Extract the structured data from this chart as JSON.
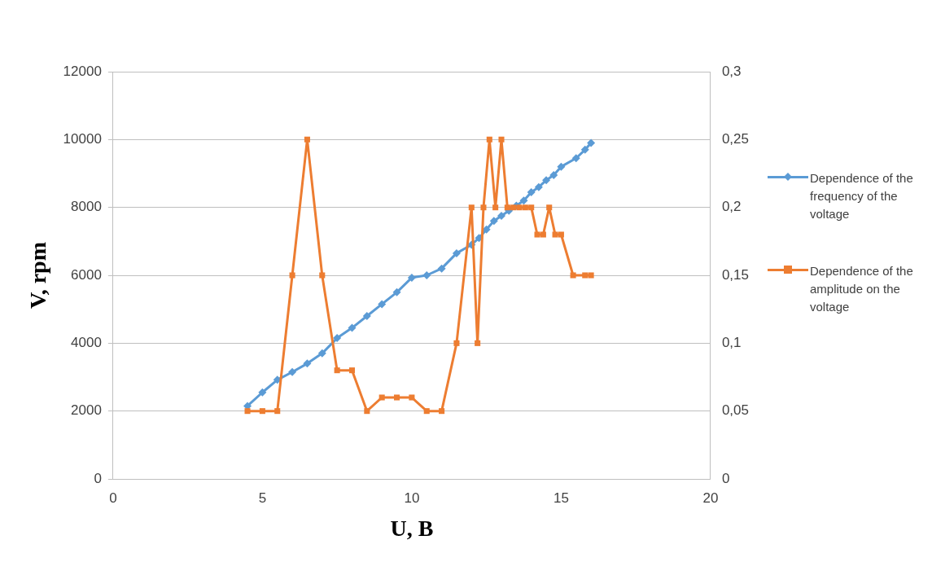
{
  "chart_data": {
    "type": "line",
    "xlabel": "U, B",
    "ylabel": "V, rpm",
    "xlim": [
      0,
      20
    ],
    "xticks": [
      0,
      5,
      10,
      15,
      20
    ],
    "ylim": [
      0,
      12000
    ],
    "yticks": [
      0,
      2000,
      4000,
      6000,
      8000,
      10000,
      12000
    ],
    "y2lim": [
      0,
      0.3
    ],
    "y2ticks": [
      0,
      {
        "value": 0.05,
        "label": "0,05"
      },
      {
        "value": 0.1,
        "label": "0,1"
      },
      {
        "value": 0.15,
        "label": "0,15"
      },
      {
        "value": 0.2,
        "label": "0,2"
      },
      {
        "value": 0.25,
        "label": "0,25"
      },
      {
        "value": 0.3,
        "label": "0,3"
      }
    ],
    "grid": "y",
    "legend": "right",
    "series": [
      {
        "name": "Dependence of the frequency of the voltage",
        "color": "#5b9bd5",
        "marker": "diamond",
        "x": [
          4.5,
          5,
          5.5,
          6,
          6.5,
          7,
          7.5,
          8,
          8.5,
          9,
          9.5,
          10,
          10.5,
          11,
          11.5,
          12,
          12.25,
          12.5,
          12.75,
          13,
          13.25,
          13.5,
          13.75,
          14,
          14.25,
          14.5,
          14.75,
          15,
          15.5,
          15.8,
          16
        ],
        "values": [
          2150,
          2550,
          2920,
          3150,
          3400,
          3700,
          4150,
          4450,
          4800,
          5150,
          5500,
          5930,
          6000,
          6200,
          6650,
          6900,
          7100,
          7350,
          7600,
          7750,
          7900,
          8050,
          8200,
          8450,
          8600,
          8800,
          8950,
          9200,
          9450,
          9700,
          9900
        ]
      },
      {
        "name": "Dependence of the amplitude on the voltage",
        "color": "#ed7d31",
        "marker": "square",
        "axis": "y2",
        "x": [
          4.5,
          5,
          5.5,
          6,
          6.5,
          7,
          7.5,
          8,
          8.5,
          9,
          9.5,
          10,
          10.5,
          11,
          11.5,
          12,
          12.2,
          12.4,
          12.6,
          12.8,
          13,
          13.2,
          13.4,
          13.6,
          13.8,
          14,
          14.2,
          14.4,
          14.6,
          14.8,
          15,
          15.4,
          15.8,
          16
        ],
        "values": [
          0.05,
          0.05,
          0.05,
          0.15,
          0.25,
          0.15,
          0.08,
          0.08,
          0.05,
          0.06,
          0.06,
          0.06,
          0.05,
          0.05,
          0.1,
          0.2,
          0.1,
          0.2,
          0.25,
          0.2,
          0.25,
          0.2,
          0.2,
          0.2,
          0.2,
          0.2,
          0.18,
          0.18,
          0.2,
          0.18,
          0.18,
          0.15,
          0.15,
          0.15
        ]
      }
    ]
  }
}
